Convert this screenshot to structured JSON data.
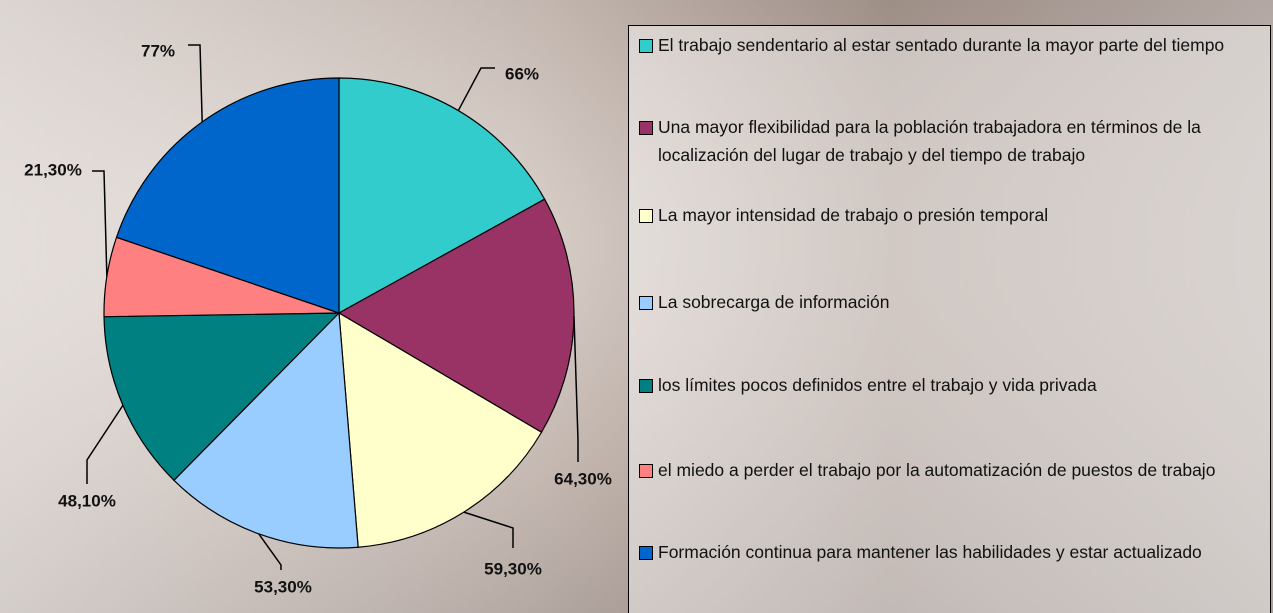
{
  "chart_data": {
    "type": "pie",
    "categories": [
      "El trabajo sendentario al estar sentado durante la mayor parte del tiempo",
      "Una mayor flexibilidad para la población trabajadora en términos de la localización del lugar de trabajo y del tiempo de trabajo",
      "La mayor intensidad de trabajo o presión temporal",
      "La sobrecarga de información",
      "los límites pocos definidos entre el trabajo y vida privada",
      "el miedo a perder el trabajo por la automatización de puestos de trabajo",
      "Formación continua para mantener las habilidades y estar actualizado"
    ],
    "values": [
      66,
      64.3,
      59.3,
      53.3,
      48.1,
      21.3,
      77
    ],
    "value_labels": [
      "66%",
      "64,30%",
      "59,30%",
      "53,30%",
      "48,10%",
      "21,30%",
      "77%"
    ],
    "colors": [
      "#33cccc",
      "#993366",
      "#ffffcc",
      "#99ccff",
      "#008080",
      "#ff8080",
      "#0066cc"
    ],
    "legend": "right"
  }
}
